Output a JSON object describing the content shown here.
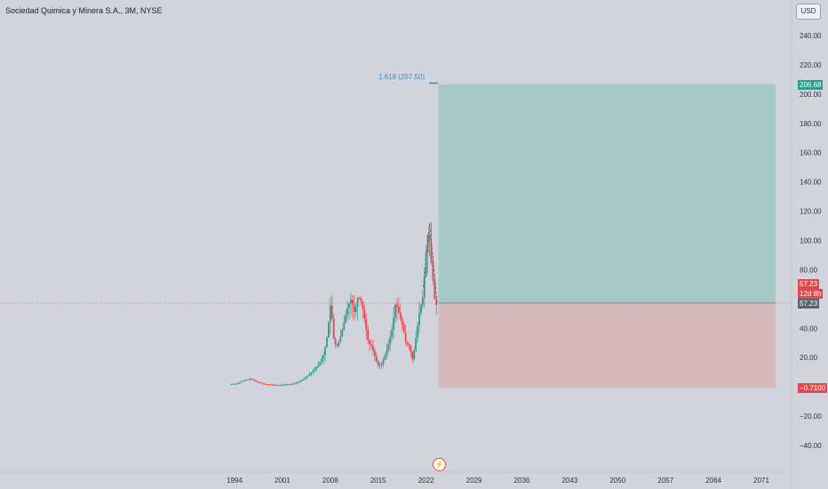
{
  "header": {
    "title": "Sociedad Quimica y Minera S.A., 3M, NYSE"
  },
  "toolbar": {
    "currency": "USD"
  },
  "fib_label": "1.618 (207.50)",
  "price_pills": {
    "target": "206.68",
    "current": "57.23",
    "countdown": "12d 8h",
    "current2": "57.23",
    "stop": "−0.7100"
  },
  "colors": {
    "background": "#d1d4dc",
    "profit_zone": "#a6c7c6",
    "loss_zone": "#d5b9bb",
    "up_candle": "#2e9b8f",
    "down_candle": "#e04a4f",
    "price_line": "#e04a4f",
    "fib_text": "#3a8fbf"
  },
  "chart_data": {
    "type": "candlestick",
    "symbol": "Sociedad Quimica y Minera S.A.",
    "interval": "3M",
    "exchange": "NYSE",
    "y_axis": {
      "ticks": [
        "240.00",
        "220.00",
        "200.00",
        "180.00",
        "160.00",
        "140.00",
        "120.00",
        "100.00",
        "80.00",
        "60.00",
        "40.00",
        "20.00",
        "0.00",
        "−20.00",
        "−40.00"
      ],
      "tick_values": [
        240,
        220,
        200,
        180,
        160,
        140,
        120,
        100,
        80,
        60,
        40,
        20,
        0,
        -20,
        -40
      ],
      "range": [
        -48,
        250
      ]
    },
    "x_axis": {
      "ticks": [
        "1994",
        "2001",
        "2008",
        "2015",
        "2022",
        "2029",
        "2036",
        "2043",
        "2050",
        "2057",
        "2064",
        "2071"
      ],
      "tick_years": [
        1994,
        2001,
        2008,
        2015,
        2022,
        2029,
        2036,
        2043,
        2050,
        2057,
        2064,
        2071
      ],
      "range": [
        1994,
        2071
      ]
    },
    "last_price": 57.23,
    "position_tool": {
      "entry": 57.23,
      "target": 206.68,
      "stop": -0.71,
      "start_year": 2023.8,
      "end_year": 2074.0
    },
    "fibonacci": {
      "level": 1.618,
      "price": 207.5
    },
    "price_path": [
      [
        1993.5,
        1.8
      ],
      [
        1994.5,
        2.2
      ],
      [
        1995.5,
        4
      ],
      [
        1996.5,
        5.5
      ],
      [
        1997.5,
        3.5
      ],
      [
        1998.5,
        2
      ],
      [
        1999.5,
        1.5
      ],
      [
        2000.5,
        1.2
      ],
      [
        2001.5,
        1.5
      ],
      [
        2002.5,
        1.8
      ],
      [
        2003.5,
        3
      ],
      [
        2004.5,
        6
      ],
      [
        2005.5,
        10
      ],
      [
        2006.5,
        15
      ],
      [
        2007.3,
        22
      ],
      [
        2007.8,
        35
      ],
      [
        2008.3,
        58
      ],
      [
        2008.8,
        30
      ],
      [
        2009.3,
        28
      ],
      [
        2009.8,
        35
      ],
      [
        2010.3,
        45
      ],
      [
        2010.8,
        55
      ],
      [
        2011.3,
        60
      ],
      [
        2011.8,
        50
      ],
      [
        2012.3,
        62
      ],
      [
        2012.8,
        58
      ],
      [
        2013.3,
        45
      ],
      [
        2013.8,
        30
      ],
      [
        2014.3,
        28
      ],
      [
        2014.8,
        20
      ],
      [
        2015.3,
        14
      ],
      [
        2015.8,
        16
      ],
      [
        2016.3,
        22
      ],
      [
        2016.8,
        30
      ],
      [
        2017.3,
        40
      ],
      [
        2017.8,
        58
      ],
      [
        2018.3,
        50
      ],
      [
        2018.8,
        42
      ],
      [
        2019.3,
        30
      ],
      [
        2019.8,
        28
      ],
      [
        2020.3,
        18
      ],
      [
        2020.8,
        35
      ],
      [
        2021.3,
        52
      ],
      [
        2021.8,
        62
      ],
      [
        2022.3,
        95
      ],
      [
        2022.6,
        108
      ],
      [
        2022.9,
        90
      ],
      [
        2023.2,
        75
      ],
      [
        2023.5,
        60
      ],
      [
        2023.8,
        55
      ]
    ]
  }
}
